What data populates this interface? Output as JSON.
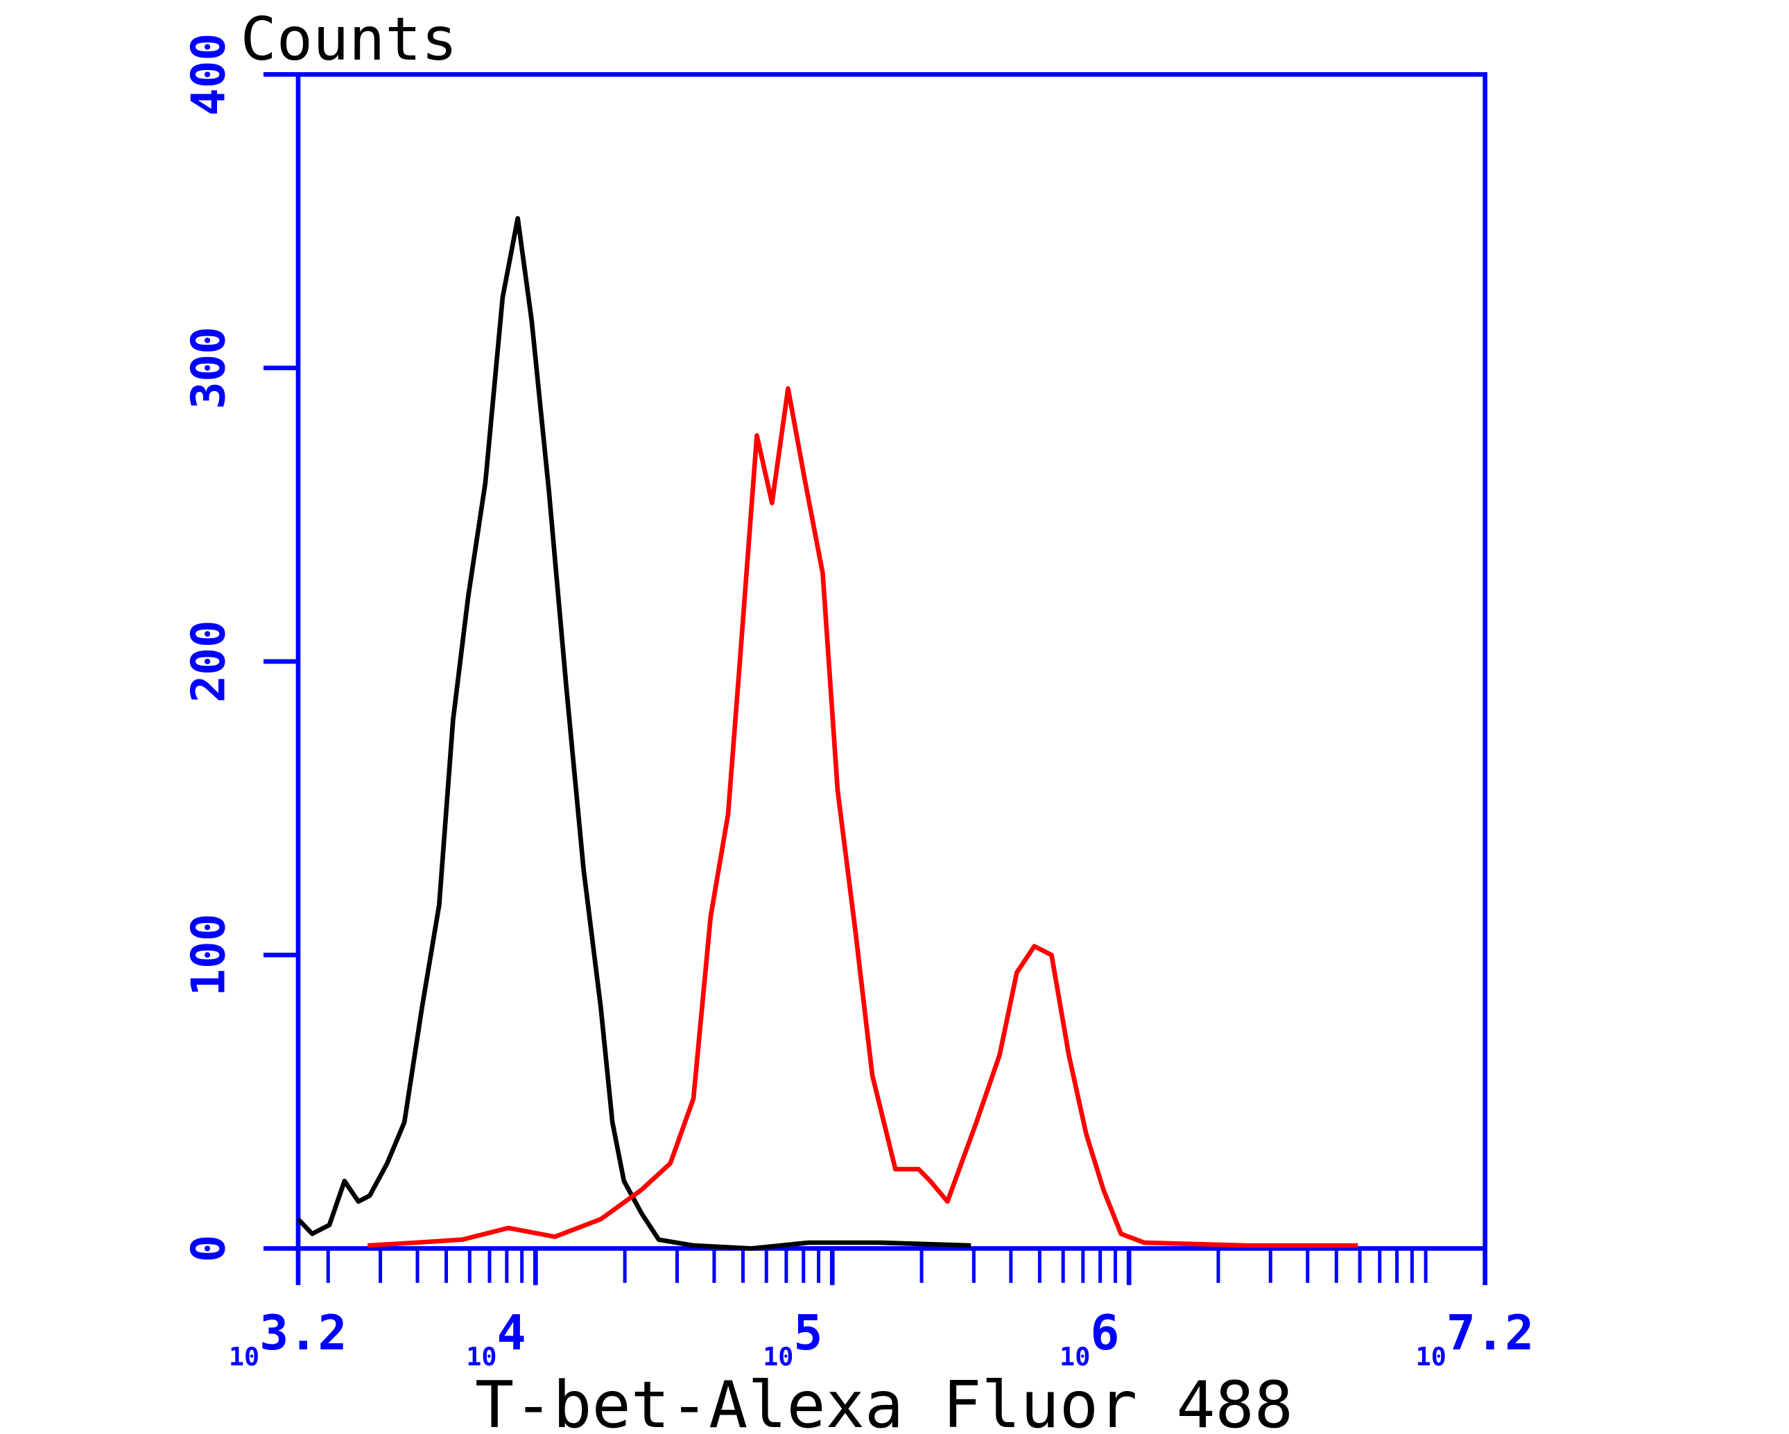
{
  "chart_data": {
    "type": "line",
    "y_label": "Counts",
    "x_label": "T-bet-Alexa Fluor 488",
    "xscale": "log",
    "xtick_base": "10",
    "xlim": [
      3.2,
      7.2
    ],
    "xticks": [
      3.2,
      4,
      5,
      6,
      7.2
    ],
    "xticks_minor": [
      3.301,
      3.477,
      3.602,
      3.699,
      3.778,
      3.845,
      3.903,
      3.954,
      4.301,
      4.477,
      4.602,
      4.699,
      4.778,
      4.845,
      4.903,
      4.954,
      5.301,
      5.477,
      5.602,
      5.699,
      5.778,
      5.845,
      5.903,
      5.954,
      6.301,
      6.477,
      6.602,
      6.699,
      6.778,
      6.845,
      6.903,
      6.954,
      7
    ],
    "ylim": [
      0,
      400
    ],
    "yticks": [
      0,
      100,
      200,
      300,
      400
    ],
    "axis_color": "#0000ff",
    "series": [
      {
        "color": "#000000",
        "x": [
          3.2,
          3.247,
          3.305,
          3.356,
          3.403,
          3.441,
          3.5,
          3.558,
          3.617,
          3.675,
          3.722,
          3.773,
          3.831,
          3.889,
          3.94,
          3.987,
          4.045,
          4.104,
          4.162,
          4.22,
          4.259,
          4.298,
          4.357,
          4.415,
          4.532,
          4.727,
          4.921,
          5.155,
          5.467
        ],
        "values": [
          10,
          5,
          8,
          23,
          16,
          18,
          29,
          43,
          82,
          117,
          180,
          222,
          261,
          324,
          351,
          316,
          258,
          191,
          129,
          82,
          43,
          23,
          12,
          3,
          1,
          0,
          2,
          2,
          1
        ]
      },
      {
        "color": "#ff0000",
        "x": [
          3.434,
          3.597,
          3.753,
          3.909,
          4.065,
          4.22,
          4.357,
          4.454,
          4.532,
          4.59,
          4.649,
          4.688,
          4.746,
          4.797,
          4.851,
          4.909,
          4.968,
          5.018,
          5.077,
          5.135,
          5.213,
          5.291,
          5.33,
          5.388,
          5.486,
          5.564,
          5.622,
          5.681,
          5.739,
          5.797,
          5.856,
          5.914,
          5.973,
          6.051,
          6.402,
          6.771
        ],
        "values": [
          1,
          2,
          3,
          7,
          4,
          10,
          20,
          29,
          51,
          113,
          148,
          199,
          277,
          254,
          293,
          261,
          230,
          156,
          109,
          59,
          27,
          27,
          23,
          16,
          43,
          66,
          94,
          103,
          100,
          66,
          39,
          20,
          5,
          2,
          1,
          1
        ]
      }
    ]
  }
}
